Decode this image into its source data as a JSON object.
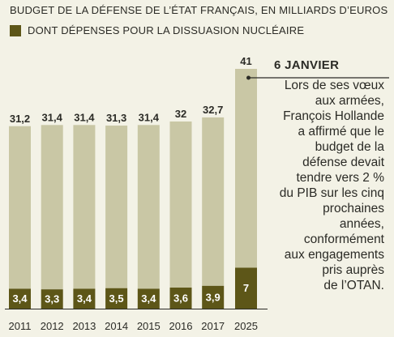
{
  "chart_data": {
    "type": "bar",
    "title": "BUDGET DE LA DÉFENSE DE L’ÉTAT FRANÇAIS, EN MILLIARDS D’EUROS",
    "legend": [
      {
        "label": "DONT DÉPENSES POUR LA DISSUASION NUCLÉAIRE",
        "color": "#5d5618"
      }
    ],
    "categories": [
      "2011",
      "2012",
      "2013",
      "2014",
      "2015",
      "2016",
      "2017",
      "2025"
    ],
    "series": [
      {
        "values": [
          31.2,
          31.4,
          31.4,
          31.3,
          31.4,
          32,
          32.7,
          41
        ],
        "labels": [
          "31,2",
          "31,4",
          "31,4",
          "31,3",
          "31,4",
          "32",
          "32,7",
          "41"
        ],
        "color": "#c9c7a5"
      },
      {
        "values": [
          3.4,
          3.3,
          3.4,
          3.5,
          3.4,
          3.6,
          3.9,
          7
        ],
        "labels": [
          "3,4",
          "3,3",
          "3,4",
          "3,5",
          "3,4",
          "3,6",
          "3,9",
          "7"
        ],
        "color": "#5d5618"
      }
    ],
    "ylim": [
      0,
      41
    ],
    "grid": false,
    "annotation": {
      "category": "2025",
      "date": "6 JANVIER",
      "text": "Lors de ses vœux\naux armées,\nFrançois Hollande\na affirmé que le\nbudget de la\ndéfense devait\ntendre vers 2 %\ndu PIB sur les cinq\nprochaines\nannées,\nconformément\naux engagements\npris auprès\nde l’OTAN."
    }
  }
}
